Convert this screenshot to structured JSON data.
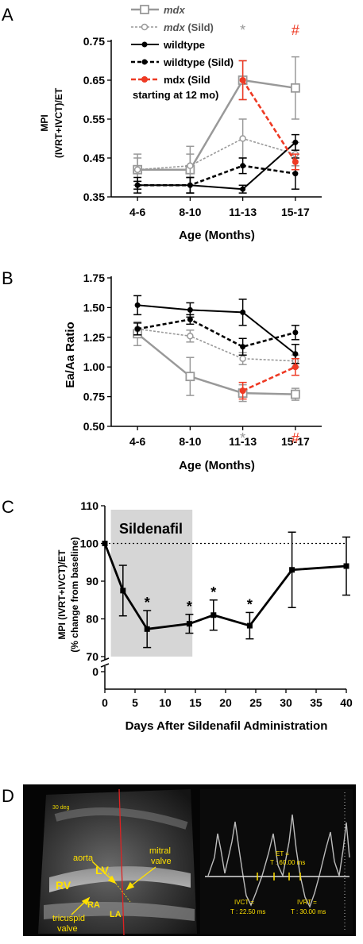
{
  "panels": {
    "A": {
      "letter": "A"
    },
    "B": {
      "letter": "B"
    },
    "C": {
      "letter": "C"
    },
    "D": {
      "letter": "D"
    }
  },
  "colors": {
    "mdx": "#999999",
    "wildtype": "#000000",
    "mdx_sild_late": "#ee3a24",
    "shade": "#d6d6d6"
  },
  "chart_data": [
    {
      "type": "line",
      "title": "",
      "ylabel_line1": "MPI",
      "ylabel_line2": "(IVRT+IVCT)/ET",
      "xlabel": "Age (Months)",
      "categories": [
        "4-6",
        "8-10",
        "11-13",
        "15-17"
      ],
      "ylim": [
        0.35,
        0.75
      ],
      "yticks": [
        "0.35",
        "0.45",
        "0.55",
        "0.65",
        "0.75"
      ],
      "legend": [
        {
          "name_italic": "mdx",
          "name_rest": "",
          "series": "mdx"
        },
        {
          "name_italic": "mdx",
          "name_rest": " (Sild)",
          "series": "mdx_sild"
        },
        {
          "name_italic": "",
          "name_rest": "wildtype",
          "series": "wt"
        },
        {
          "name_italic": "",
          "name_rest": "wildtype (Sild)",
          "series": "wt_sild"
        },
        {
          "name_italic": "",
          "name_rest": "mdx (Sild",
          "name_line2": "starting at 12 mo)",
          "series": "mdx_late"
        }
      ],
      "series": [
        {
          "key": "mdx",
          "values": [
            0.42,
            0.42,
            0.65,
            0.63
          ],
          "err": [
            0.04,
            0.04,
            0.05,
            0.08
          ]
        },
        {
          "key": "mdx_sild",
          "values": [
            0.42,
            0.43,
            0.5,
            0.46
          ],
          "err": [
            0.03,
            0.05,
            0.05,
            0.03
          ]
        },
        {
          "key": "wt",
          "values": [
            0.38,
            0.38,
            0.37,
            0.49
          ],
          "err": [
            0.01,
            0.02,
            0.01,
            0.02
          ]
        },
        {
          "key": "wt_sild",
          "values": [
            0.38,
            0.38,
            0.43,
            0.41
          ],
          "err": [
            0.02,
            0.02,
            0.02,
            0.04
          ]
        },
        {
          "key": "mdx_late",
          "x_start": 2,
          "values": [
            null,
            null,
            0.65,
            0.44
          ],
          "err": [
            0,
            0,
            0.05,
            0.02
          ]
        }
      ],
      "annotations": [
        {
          "text": "*",
          "category": 2,
          "color": "#999999"
        },
        {
          "text": "#",
          "category": 3,
          "color": "#ee3a24"
        }
      ]
    },
    {
      "type": "line",
      "title": "",
      "ylabel": "Ea/Aa Ratio",
      "xlabel": "Age (Months)",
      "categories": [
        "4-6",
        "8-10",
        "11-13",
        "15-17"
      ],
      "ylim": [
        0.5,
        1.75
      ],
      "yticks": [
        "0.50",
        "0.75",
        "1.00",
        "1.25",
        "1.50",
        "1.75"
      ],
      "series": [
        {
          "key": "mdx",
          "values": [
            1.28,
            0.92,
            0.78,
            0.77
          ],
          "err": [
            0.1,
            0.16,
            0.07,
            0.05
          ]
        },
        {
          "key": "mdx_sild",
          "values": [
            1.32,
            1.26,
            1.07,
            1.05
          ],
          "err": [
            0.05,
            0.05,
            0.05,
            0.05
          ]
        },
        {
          "key": "wt",
          "values": [
            1.52,
            1.48,
            1.46,
            1.11
          ],
          "err": [
            0.08,
            0.06,
            0.11,
            0.08
          ]
        },
        {
          "key": "wt_sild",
          "values": [
            1.32,
            1.4,
            1.17,
            1.29
          ],
          "err": [
            0.05,
            0.04,
            0.07,
            0.06
          ]
        },
        {
          "key": "mdx_late",
          "x_start": 2,
          "values": [
            null,
            null,
            0.8,
            1.0
          ],
          "err": [
            0,
            0,
            0.07,
            0.07
          ]
        }
      ],
      "annotations": [
        {
          "text": "*",
          "category": 2,
          "color": "#999999"
        },
        {
          "text": "#",
          "category": 3,
          "color": "#ee3a24"
        }
      ]
    },
    {
      "type": "line",
      "title": "",
      "ylabel_line1": "MPI (IVRT+IVCT)/ET",
      "ylabel_line2": "(% change from baseline)",
      "xlabel": "Days After Sildenafil Administration",
      "shaded_label": "Sildenafil",
      "shaded_range": [
        1,
        14.5
      ],
      "reference_line": 100,
      "xlim": [
        0,
        40
      ],
      "xticks": [
        "0",
        "5",
        "10",
        "15",
        "20",
        "25",
        "30",
        "35",
        "40"
      ],
      "ylim": [
        70,
        110
      ],
      "yticks": [
        "70",
        "80",
        "90",
        "100",
        "110"
      ],
      "y_break_label": "0",
      "series": [
        {
          "key": "sildenafil",
          "x": [
            0,
            3,
            7,
            14,
            18,
            24,
            31,
            40
          ],
          "values": [
            100,
            87.5,
            77.3,
            78.7,
            81.0,
            78.2,
            93.0,
            94.0
          ],
          "err": [
            0,
            6.7,
            4.9,
            2.5,
            4.0,
            3.5,
            10.0,
            7.7
          ]
        }
      ],
      "star_x": [
        7,
        14,
        18,
        24
      ],
      "star_text": "*"
    }
  ],
  "echo": {
    "angle_label": "30 deg",
    "labels": {
      "aorta": "aorta",
      "lv": "LV",
      "mitral": "mitral",
      "valve": "valve",
      "rv": "RV",
      "ra": "RA",
      "la": "LA",
      "tricuspid": "tricuspid",
      "tricuspid_valve": "valve"
    },
    "doppler": {
      "et_label": "ET =",
      "et_value": "T : 60.00 ms",
      "ivct_label": "IVCT =",
      "ivct_value": "T : 22.50 ms",
      "ivrt_label": "IVRT =",
      "ivrt_value": "T : 30.00 ms"
    }
  }
}
